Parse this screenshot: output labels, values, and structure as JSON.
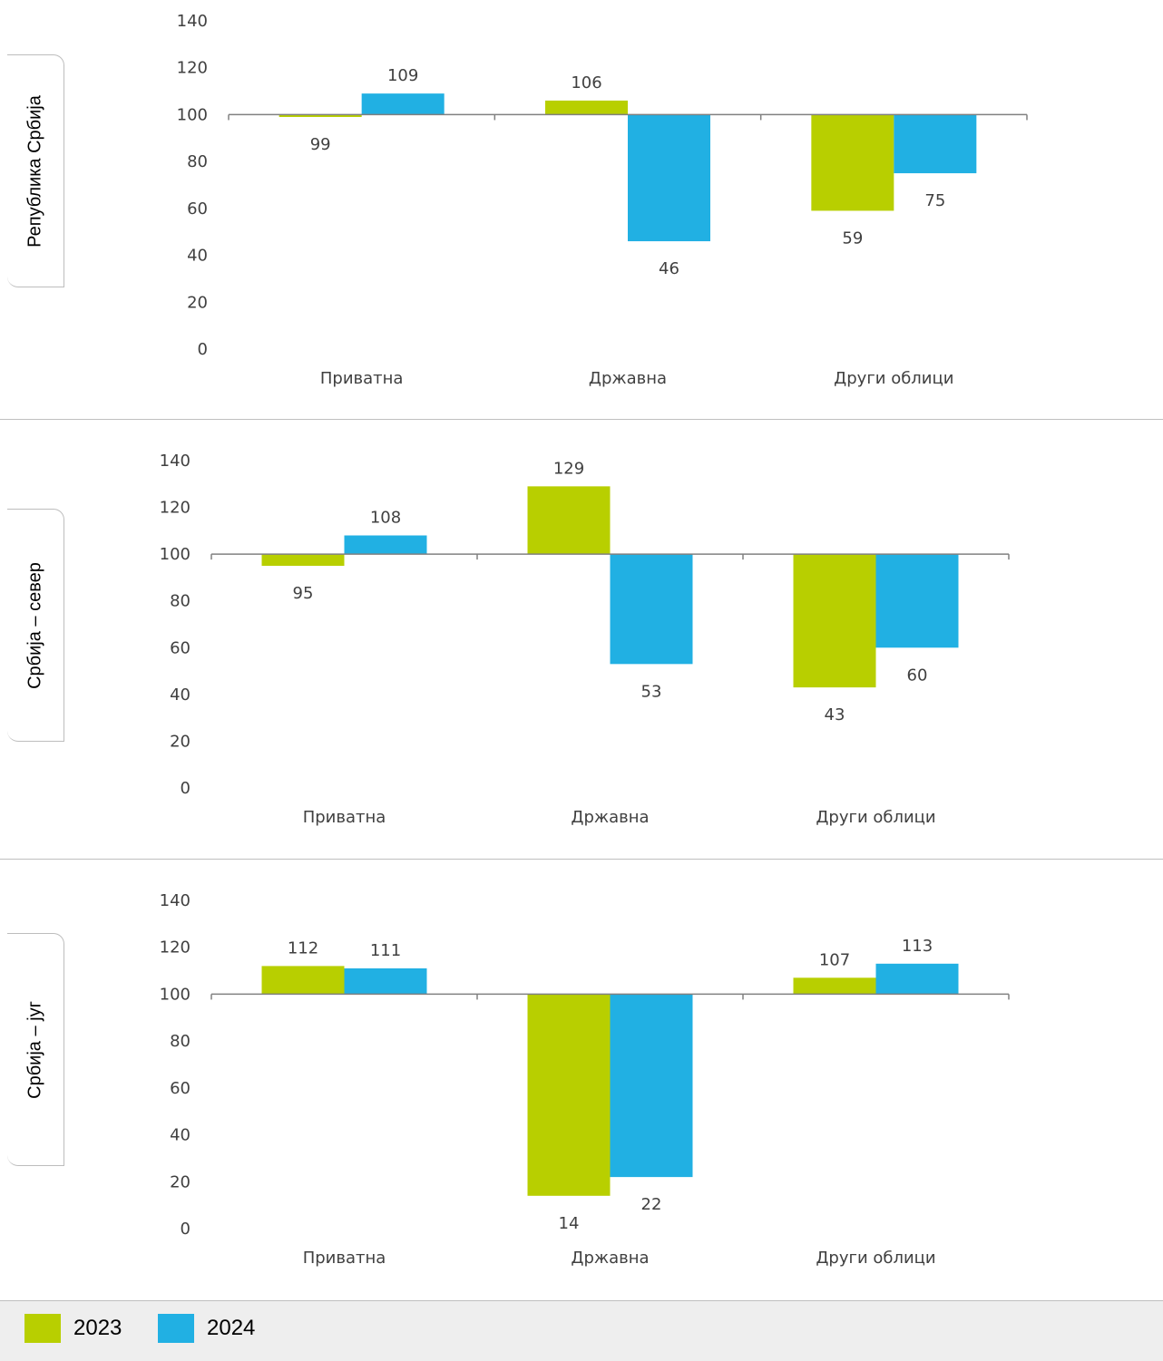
{
  "colors": {
    "2023": "#b8cf00",
    "2024": "#21b0e3"
  },
  "legend": [
    {
      "label": "2023",
      "color": "#b8cf00"
    },
    {
      "label": "2024",
      "color": "#21b0e3"
    }
  ],
  "chart_data": [
    {
      "type": "bar",
      "title": "Република Србија",
      "categories": [
        "Приватна",
        "Државна",
        "Други облици"
      ],
      "series": [
        {
          "name": "2023",
          "values": [
            99,
            106,
            59
          ]
        },
        {
          "name": "2024",
          "values": [
            109,
            46,
            75
          ]
        }
      ],
      "baseline": 100,
      "ylim": [
        0,
        140
      ],
      "yticks": [
        0,
        20,
        40,
        60,
        80,
        100,
        120,
        140
      ],
      "legend_position": "bottom"
    },
    {
      "type": "bar",
      "title": "Србија – север",
      "categories": [
        "Приватна",
        "Државна",
        "Други облици"
      ],
      "series": [
        {
          "name": "2023",
          "values": [
            95,
            129,
            43
          ]
        },
        {
          "name": "2024",
          "values": [
            108,
            53,
            60
          ]
        }
      ],
      "baseline": 100,
      "ylim": [
        0,
        140
      ],
      "yticks": [
        0,
        20,
        40,
        60,
        80,
        100,
        120,
        140
      ],
      "legend_position": "bottom"
    },
    {
      "type": "bar",
      "title": "Србија – југ",
      "categories": [
        "Приватна",
        "Државна",
        "Други облици"
      ],
      "series": [
        {
          "name": "2023",
          "values": [
            112,
            14,
            107
          ]
        },
        {
          "name": "2024",
          "values": [
            111,
            22,
            113
          ]
        }
      ],
      "baseline": 100,
      "ylim": [
        0,
        140
      ],
      "yticks": [
        0,
        20,
        40,
        60,
        80,
        100,
        120,
        140
      ],
      "legend_position": "bottom"
    }
  ]
}
